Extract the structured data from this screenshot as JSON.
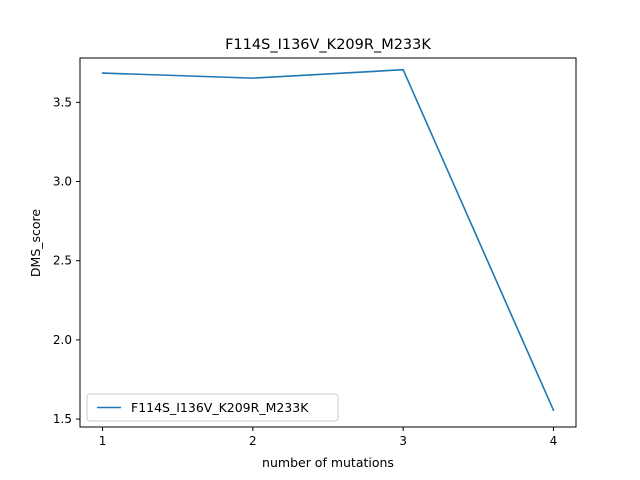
{
  "chart_data": {
    "type": "line",
    "title": "F114S_I136V_K209R_M233K",
    "xlabel": "number of mutations",
    "ylabel": "DMS_score",
    "x": [
      1,
      2,
      3,
      4
    ],
    "xticks": [
      "1",
      "2",
      "3",
      "4"
    ],
    "yticks": [
      "1.5",
      "2.0",
      "2.5",
      "3.0",
      "3.5"
    ],
    "ylim": [
      1.45,
      3.78
    ],
    "xlim": [
      0.85,
      4.15
    ],
    "grid": false,
    "legend_position": "lower-left",
    "series": [
      {
        "name": "F114S_I136V_K209R_M233K",
        "values": [
          3.685,
          3.653,
          3.706,
          1.556
        ],
        "color": "#1f77b4"
      }
    ]
  }
}
